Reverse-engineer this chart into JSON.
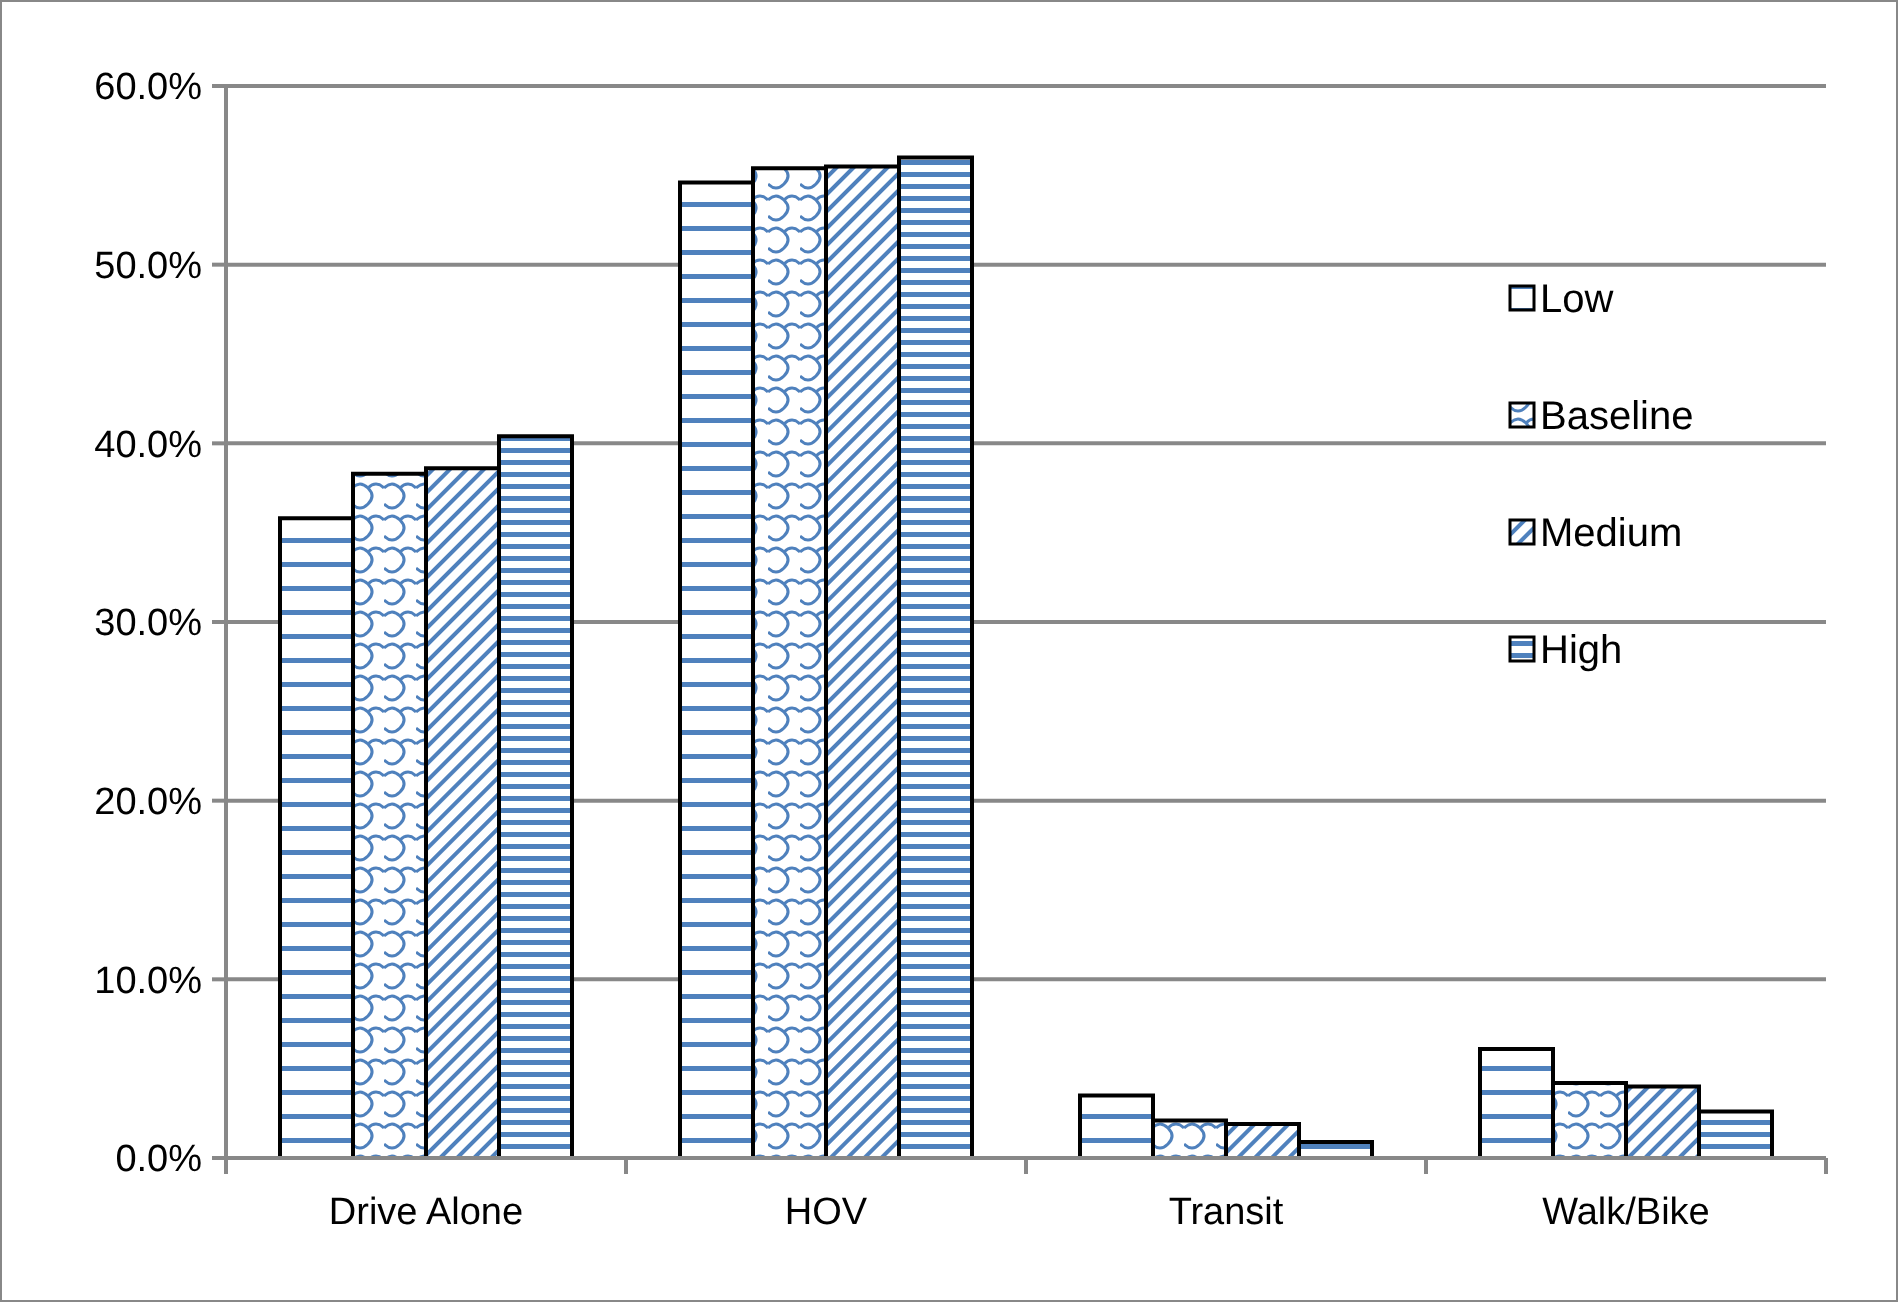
{
  "chart_data": {
    "type": "bar",
    "categories": [
      "Drive Alone",
      "HOV",
      "Transit",
      "Walk/Bike"
    ],
    "series": [
      {
        "name": "Low",
        "color": "#4f81bd",
        "values": [
          35.8,
          54.6,
          3.5,
          6.1
        ]
      },
      {
        "name": "Baseline",
        "color": "#4f81bd",
        "values": [
          38.3,
          55.4,
          2.1,
          4.2
        ]
      },
      {
        "name": "Medium",
        "color": "#4f81bd",
        "values": [
          38.6,
          55.5,
          1.9,
          4.0
        ]
      },
      {
        "name": "High",
        "color": "#4f81bd",
        "values": [
          40.4,
          56.0,
          0.9,
          2.6
        ]
      }
    ],
    "ylim": [
      0,
      60
    ],
    "yticks": [
      {
        "value": 0,
        "label": "0.0%"
      },
      {
        "value": 10,
        "label": "10.0%"
      },
      {
        "value": 20,
        "label": "20.0%"
      },
      {
        "value": 30,
        "label": "30.0%"
      },
      {
        "value": 40,
        "label": "40.0%"
      },
      {
        "value": 50,
        "label": "50.0%"
      },
      {
        "value": 60,
        "label": "60.0%"
      }
    ],
    "grid": "y",
    "legend": "right"
  }
}
